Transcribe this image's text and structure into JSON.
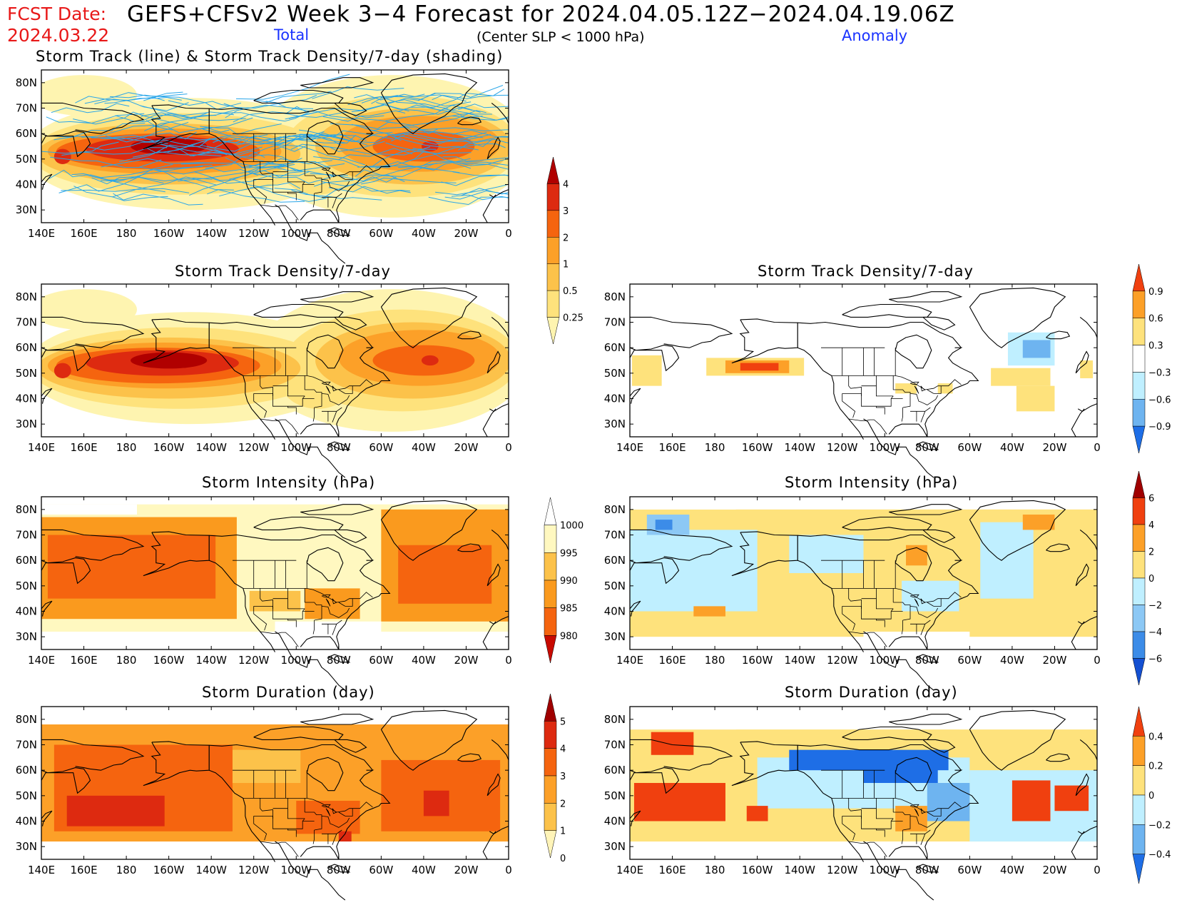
{
  "header": {
    "fcst_label": "FCST Date:",
    "fcst_date": "2024.03.22",
    "title": "GEFS+CFSv2 Week 3−4 Forecast for 2024.04.05.12Z−2024.04.19.06Z",
    "total_label": "Total",
    "subtitle": "(Center SLP < 1000 hPa)",
    "anomaly_label": "Anomaly"
  },
  "axes": {
    "lat_labels": [
      "80N",
      "70N",
      "60N",
      "50N",
      "40N",
      "30N"
    ],
    "lon_labels": [
      "140E",
      "160E",
      "180",
      "160W",
      "140W",
      "120W",
      "100W",
      "80W",
      "60W",
      "40W",
      "20W",
      "0"
    ]
  },
  "panels": [
    {
      "id": "track-total",
      "title": "Storm Track (line) & Storm Track Density/7-day (shading)"
    },
    {
      "id": "density-total",
      "title": "Storm Track Density/7-day"
    },
    {
      "id": "density-anom",
      "title": "Storm Track Density/7-day"
    },
    {
      "id": "intensity-total",
      "title": "Storm Intensity (hPa)"
    },
    {
      "id": "intensity-anom",
      "title": "Storm Intensity (hPa)"
    },
    {
      "id": "duration-total",
      "title": "Storm Duration (day)"
    },
    {
      "id": "duration-anom",
      "title": "Storm Duration (day)"
    }
  ],
  "colorbars": {
    "density_total": {
      "labels": [
        "4",
        "3",
        "2",
        "1",
        "0.5",
        "0.25"
      ],
      "colors": [
        "#b00000",
        "#dd2a10",
        "#f5640f",
        "#fca028",
        "#fcc24a",
        "#fee27c",
        "#fef4b0"
      ]
    },
    "density_anom": {
      "labels": [
        "0.9",
        "0.6",
        "0.3",
        "−0.3",
        "−0.6",
        "−0.9"
      ],
      "colors": [
        "#f0400f",
        "#fca028",
        "#fee27c",
        "#ffffff",
        "#bfefff",
        "#6eb4f0",
        "#1e6ee6"
      ]
    },
    "intensity_total": {
      "labels": [
        "1000",
        "995",
        "990",
        "985",
        "980"
      ],
      "colors": [
        "#ffffff",
        "#fff8c0",
        "#fcc24a",
        "#fa9a1e",
        "#f5640f",
        "#c80a00"
      ]
    },
    "intensity_anom": {
      "labels": [
        "6",
        "4",
        "2",
        "0",
        "−2",
        "−4",
        "−6"
      ],
      "colors": [
        "#a00000",
        "#f0400f",
        "#fca028",
        "#fee27c",
        "#bfefff",
        "#8cc8f5",
        "#3c8ce8",
        "#1450d2"
      ]
    },
    "duration_total": {
      "labels": [
        "5",
        "4",
        "3",
        "2",
        "1",
        "0"
      ],
      "colors": [
        "#a00000",
        "#dd2a10",
        "#f5640f",
        "#fca028",
        "#fcc24a",
        "#fff4b8"
      ]
    },
    "duration_anom": {
      "labels": [
        "0.4",
        "0.2",
        "0",
        "−0.2",
        "−0.4"
      ],
      "colors": [
        "#f0400f",
        "#fca028",
        "#fee27c",
        "#bfefff",
        "#6eb4f0",
        "#1e6ee6"
      ]
    }
  }
}
